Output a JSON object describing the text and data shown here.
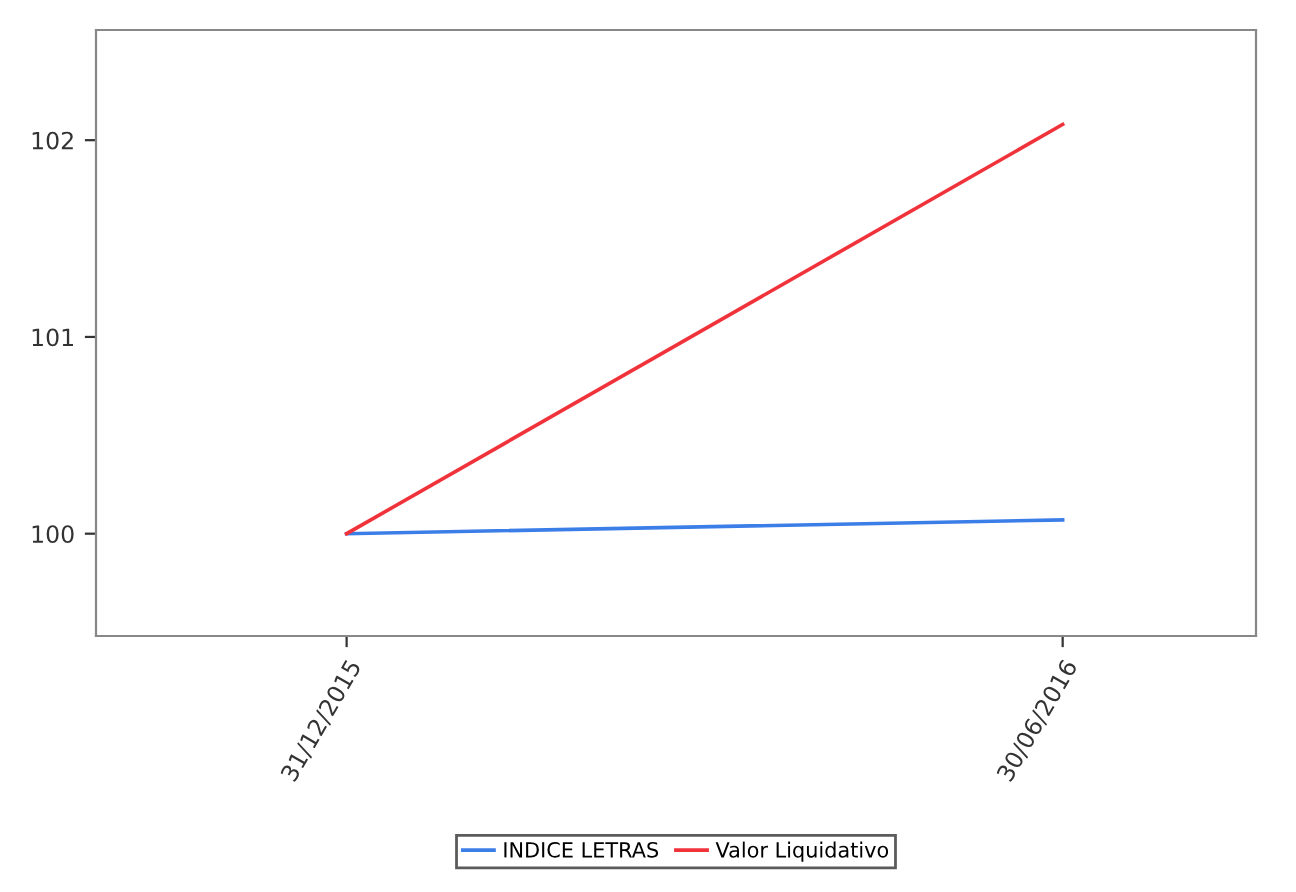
{
  "chart_data": {
    "type": "line",
    "categories": [
      "31/12/2015",
      "30/06/2016"
    ],
    "series": [
      {
        "name": "INDICE LETRAS",
        "color": "#3c7ee8",
        "values": [
          100.0,
          100.07
        ]
      },
      {
        "name": "Valor Liquidativo",
        "color": "#f0333a",
        "values": [
          100.0,
          102.08
        ]
      }
    ],
    "ylim": [
      99.48,
      102.56
    ],
    "yticks": [
      100,
      101,
      102
    ],
    "grid": false,
    "legend": "bottom",
    "marker": "none",
    "line_style": "solid"
  }
}
